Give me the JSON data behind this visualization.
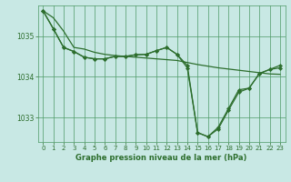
{
  "title": "Graphe pression niveau de la mer (hPa)",
  "background_color": "#c8e8e4",
  "grid_color": "#4d9966",
  "line_color": "#2d6e2d",
  "xlim": [
    -0.5,
    23.5
  ],
  "ylim": [
    1032.4,
    1035.75
  ],
  "yticks": [
    1033,
    1034,
    1035
  ],
  "xticks": [
    0,
    1,
    2,
    3,
    4,
    5,
    6,
    7,
    8,
    9,
    10,
    11,
    12,
    13,
    14,
    15,
    16,
    17,
    18,
    19,
    20,
    21,
    22,
    23
  ],
  "series": [
    [
      1035.62,
      1035.45,
      1035.12,
      1034.72,
      1034.68,
      1034.6,
      1034.55,
      1034.52,
      1034.5,
      1034.48,
      1034.46,
      1034.44,
      1034.42,
      1034.4,
      1034.35,
      1034.3,
      1034.26,
      1034.22,
      1034.19,
      1034.16,
      1034.13,
      1034.1,
      1034.07,
      1034.06
    ],
    [
      1035.62,
      1035.18,
      1034.72,
      1034.62,
      1034.48,
      1034.44,
      1034.44,
      1034.5,
      1034.5,
      1034.54,
      1034.55,
      1034.64,
      1034.72,
      1034.55,
      1034.22,
      1032.63,
      1032.53,
      1032.72,
      1033.18,
      1033.62,
      1033.72,
      1034.08,
      1034.18,
      1034.22
    ],
    [
      1035.62,
      1035.18,
      1034.72,
      1034.62,
      1034.48,
      1034.44,
      1034.44,
      1034.5,
      1034.5,
      1034.54,
      1034.55,
      1034.64,
      1034.72,
      1034.55,
      1034.28,
      1032.63,
      1032.53,
      1032.76,
      1033.22,
      1033.68,
      1033.72,
      1034.08,
      1034.18,
      1034.28
    ]
  ],
  "linewidth": 0.9,
  "marker_size": 2.2,
  "tick_fontsize": 5.0,
  "label_fontsize": 6.0
}
